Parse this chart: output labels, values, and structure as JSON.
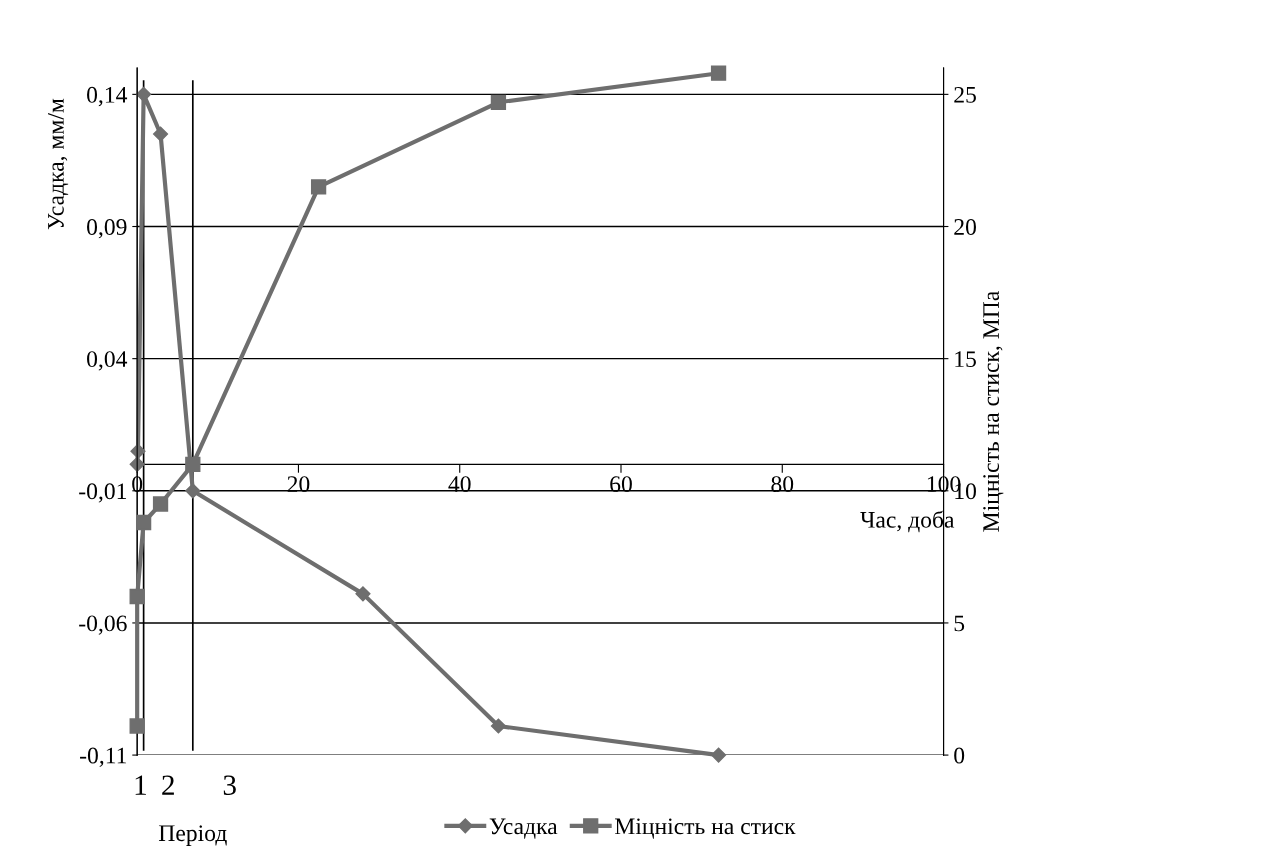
{
  "chart_data": {
    "type": "line",
    "xlabel": "Час, доба",
    "ylabel": "Усадка, мм/м",
    "y2label": "Міцність на стиск, МПа",
    "xlim": [
      0,
      100
    ],
    "xticks": [
      0,
      20,
      40,
      60,
      80,
      100
    ],
    "ylim": [
      -0.11,
      0.15
    ],
    "yticks": [
      {
        "value": -0.11,
        "label": "-0,11"
      },
      {
        "value": -0.06,
        "label": "-0,06"
      },
      {
        "value": -0.01,
        "label": "-0,01"
      },
      {
        "value": 0.04,
        "label": "0,04"
      },
      {
        "value": 0.09,
        "label": "0,09"
      },
      {
        "value": 0.14,
        "label": "0,14"
      }
    ],
    "y2lim": [
      0,
      26
    ],
    "y2ticks": [
      0,
      5,
      10,
      15,
      20,
      25
    ],
    "grid": "y",
    "legend": "bottom",
    "series": [
      {
        "name": "Усадка",
        "color": "#6e6e6e",
        "marker": "diamond",
        "x": [
          0,
          0.1,
          0.8,
          2.9,
          6.9,
          28,
          44.8,
          72.1
        ],
        "values": [
          0,
          0.005,
          0.14,
          0.125,
          -0.01,
          -0.049,
          -0.099,
          -0.11
        ]
      },
      {
        "name": "Міцність на стиск",
        "color": "#6e6e6e",
        "marker": "square",
        "axis": "y2",
        "x": [
          0,
          0,
          0.8,
          2.9,
          6.9,
          22.5,
          44.8,
          72.1
        ],
        "values": [
          1.1,
          6.0,
          8.8,
          9.5,
          11.0,
          21.5,
          24.7,
          25.8
        ]
      }
    ],
    "ref_lines": [
      {
        "axis": "x",
        "value": 0.8,
        "color": "#000000"
      },
      {
        "axis": "x",
        "value": 6.9,
        "color": "#000000"
      }
    ],
    "annotations": [
      "1",
      "2",
      "3",
      "Період"
    ]
  }
}
